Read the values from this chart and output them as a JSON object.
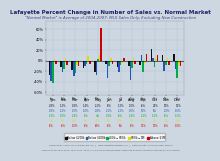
{
  "title": "Lafayette Percent Change in Number of Sales vs. Normal Market",
  "subtitle": "\"Normal Market\" is Average of 2004-2007: MLS Sales Only, Excluding New Construction",
  "background_color": "#ccd7e2",
  "periods": [
    "Jan",
    "Feb",
    "Mar",
    "Apr",
    "May",
    "Jun",
    "Jul",
    "Aug",
    "Sep",
    "Oct",
    "Nov",
    "Dec"
  ],
  "series_names": [
    "Below $200k",
    "Below $400k",
    "$400k-$600k",
    "$600k-$1M",
    "Above $1M"
  ],
  "colors": [
    "#111111",
    "#2255bb",
    "#00aa44",
    "#dddd00",
    "#cc0000"
  ],
  "values": [
    [
      -0.28,
      -0.12,
      -0.18,
      -0.14,
      -0.22,
      -0.06,
      -0.12,
      -0.1,
      -0.08,
      0.22,
      0.1,
      0.12
    ],
    [
      -0.38,
      -0.22,
      -0.3,
      -0.1,
      -0.28,
      -0.32,
      -0.22,
      -0.36,
      0.1,
      0.06,
      -0.2,
      -0.16
    ],
    [
      -0.42,
      -0.16,
      -0.24,
      -0.06,
      0.04,
      -0.1,
      -0.08,
      -0.14,
      -0.22,
      -0.12,
      -0.08,
      -0.32
    ],
    [
      0.04,
      0.06,
      -0.08,
      0.08,
      0.1,
      0.06,
      -0.04,
      0.05,
      -0.04,
      0.04,
      0.06,
      -0.08
    ],
    [
      -0.06,
      -0.08,
      -0.1,
      -0.06,
      0.62,
      -0.06,
      0.06,
      -0.06,
      0.12,
      0.1,
      -0.08,
      -0.1
    ]
  ],
  "table_data": [
    [
      "-28%",
      "-12%",
      "-18%",
      "-14%",
      "-22%",
      "-6%",
      "-12%",
      "-10%",
      "-8%",
      "22%",
      "10%",
      "12%"
    ],
    [
      "-38%",
      "-22%",
      "-30%",
      "-10%",
      "-28%",
      "-32%",
      "-22%",
      "-36%",
      "10%",
      "6%",
      "-20%",
      "-16%"
    ],
    [
      "-42%",
      "-16%",
      "-24%",
      "-6%",
      "4%",
      "-10%",
      "-8%",
      "-14%",
      "-22%",
      "-12%",
      "-8%",
      "-32%"
    ],
    [
      "4%",
      "6%",
      "-8%",
      "8%",
      "10%",
      "6%",
      "-4%",
      "5%",
      "-4%",
      "4%",
      "6%",
      "-8%"
    ],
    [
      "-6%",
      "-8%",
      "-10%",
      "-6%",
      "62%",
      "-6%",
      "6%",
      "-6%",
      "12%",
      "10%",
      "-8%",
      "-10%"
    ]
  ],
  "ylim": [
    -0.65,
    0.75
  ],
  "bar_width": 0.14,
  "grid_color": "#b0c4d8",
  "footer1": "Compiled By Apprec for Home Buyers LLC   |   www.lafayettehomebid.com   |   Data Sources: CCAR MLS Benchmarks",
  "footer2": "Sales Price for 2007-2009, 2010-2011, 2012, 2 3rd Quarter data available; presented quarterly-accurate data can not be collected"
}
